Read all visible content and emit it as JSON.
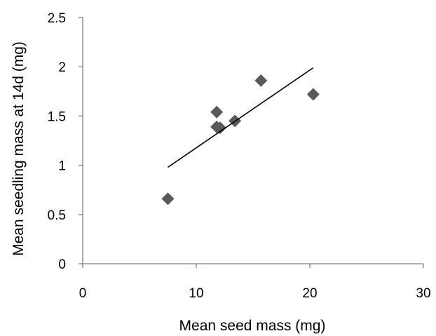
{
  "chart_data": {
    "type": "scatter",
    "xlabel": "Mean seed mass (mg)",
    "ylabel": "Mean seedling mass at 14d (mg)",
    "xlim": [
      0,
      30
    ],
    "ylim": [
      0,
      2.5
    ],
    "xticks": [
      0,
      10,
      20,
      30
    ],
    "yticks": [
      0,
      0.5,
      1,
      1.5,
      2,
      2.5
    ],
    "grid": false,
    "marker": "diamond",
    "marker_color": "#595959",
    "series": [
      {
        "points": [
          {
            "x": 7.5,
            "y": 0.66
          },
          {
            "x": 11.8,
            "y": 1.54
          },
          {
            "x": 11.8,
            "y": 1.39
          },
          {
            "x": 12.1,
            "y": 1.38
          },
          {
            "x": 13.4,
            "y": 1.45
          },
          {
            "x": 15.7,
            "y": 1.86
          },
          {
            "x": 20.3,
            "y": 1.72
          }
        ]
      }
    ],
    "trendline": {
      "type": "linear",
      "x_range": [
        7.5,
        20.3
      ],
      "y_range": [
        0.98,
        1.99
      ]
    }
  }
}
